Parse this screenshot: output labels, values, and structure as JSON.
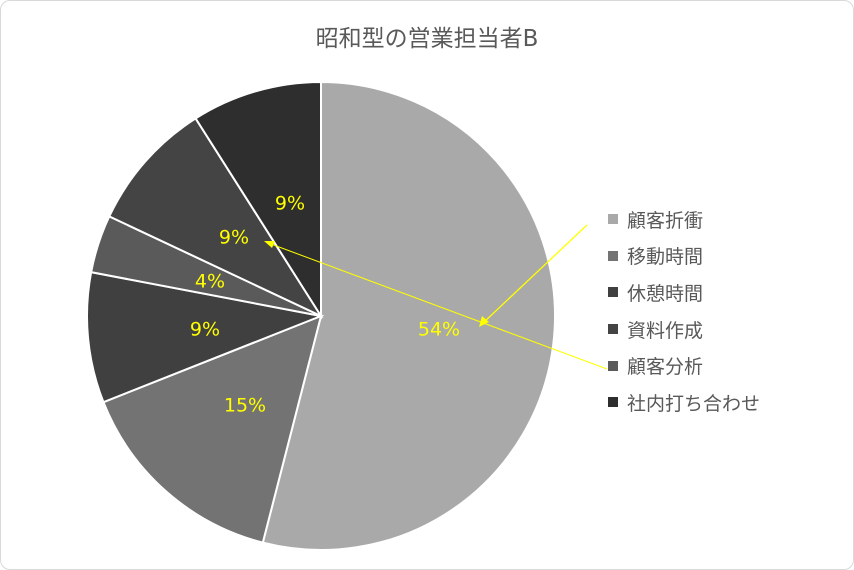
{
  "chart_data": {
    "type": "pie",
    "title": "昭和型の営業担当者B",
    "categories": [
      "顧客折衝",
      "移動時間",
      "休憩時間",
      "顧客分析",
      "資料作成",
      "社内打ち合わせ"
    ],
    "values": [
      54,
      15,
      9,
      4,
      9,
      9
    ],
    "labels": [
      "54%",
      "15%",
      "9%",
      "4%",
      "9%",
      "9%"
    ],
    "colors": [
      "#a9a9a9",
      "#737373",
      "#404040",
      "#5a5a5a",
      "#444444",
      "#2e2e2e"
    ],
    "label_color": "#ffff00",
    "legend_position": "right",
    "legend_order": [
      0,
      1,
      2,
      4,
      3,
      5
    ]
  }
}
